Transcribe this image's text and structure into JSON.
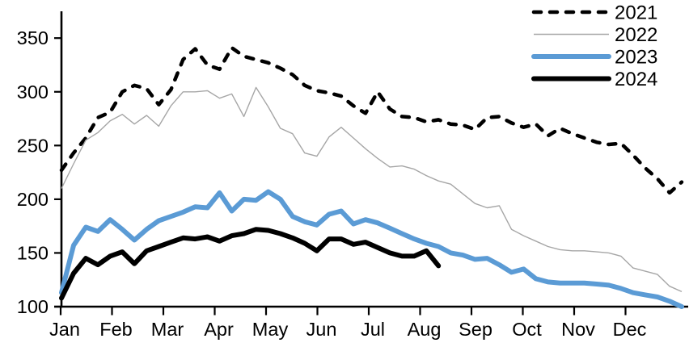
{
  "chart_data": {
    "type": "line",
    "title": "",
    "xlabel": "",
    "ylabel": "",
    "x_unit": "weekly (Jan-Dec)",
    "x_tick_labels": [
      "Jan",
      "Feb",
      "Mar",
      "Apr",
      "May",
      "Jun",
      "Jul",
      "Aug",
      "Sep",
      "Oct",
      "Nov",
      "Dec"
    ],
    "y_ticks": [
      350,
      300,
      250,
      200,
      150,
      100
    ],
    "ylim": [
      100,
      375
    ],
    "grid": false,
    "legend_position": "top-right",
    "series": [
      {
        "name": "2021",
        "style": "dashed",
        "color": "#000000",
        "values": [
          227,
          243,
          257,
          276,
          281,
          300,
          306,
          303,
          288,
          302,
          330,
          340,
          325,
          321,
          341,
          333,
          330,
          327,
          322,
          316,
          306,
          301,
          299,
          296,
          287,
          280,
          300,
          284,
          277,
          276,
          272,
          274,
          270,
          269,
          265,
          276,
          277,
          271,
          267,
          270,
          259,
          266,
          261,
          257,
          253,
          251,
          252,
          241,
          229,
          219,
          206,
          216
        ]
      },
      {
        "name": "2022",
        "style": "thin-solid",
        "color": "#A6A6A6",
        "values": [
          210,
          233,
          255,
          262,
          273,
          279,
          270,
          278,
          268,
          287,
          300,
          300,
          301,
          294,
          298,
          277,
          304,
          286,
          266,
          261,
          243,
          240,
          258,
          267,
          257,
          247,
          238,
          230,
          231,
          228,
          222,
          217,
          214,
          205,
          196,
          192,
          194,
          172,
          166,
          161,
          156,
          153,
          152,
          152,
          151,
          150,
          147,
          136,
          133,
          130,
          119,
          114
        ]
      },
      {
        "name": "2023",
        "style": "thick-solid",
        "color": "#5B9BD5",
        "values": [
          113,
          157,
          174,
          170,
          181,
          172,
          162,
          172,
          180,
          184,
          188,
          193,
          192,
          206,
          189,
          200,
          199,
          207,
          200,
          184,
          179,
          176,
          186,
          189,
          177,
          181,
          178,
          173,
          168,
          163,
          159,
          156,
          150,
          148,
          144,
          145,
          139,
          132,
          135,
          126,
          123,
          122,
          122,
          122,
          121,
          120,
          117,
          113,
          111,
          109,
          105,
          100
        ]
      },
      {
        "name": "2024",
        "style": "thick-solid",
        "color": "#000000",
        "values": [
          108,
          131,
          145,
          139,
          147,
          151,
          140,
          152,
          156,
          160,
          164,
          163,
          165,
          161,
          166,
          168,
          172,
          171,
          168,
          164,
          159,
          152,
          163,
          163,
          158,
          160,
          155,
          150,
          147,
          147,
          152,
          138
        ]
      }
    ]
  }
}
